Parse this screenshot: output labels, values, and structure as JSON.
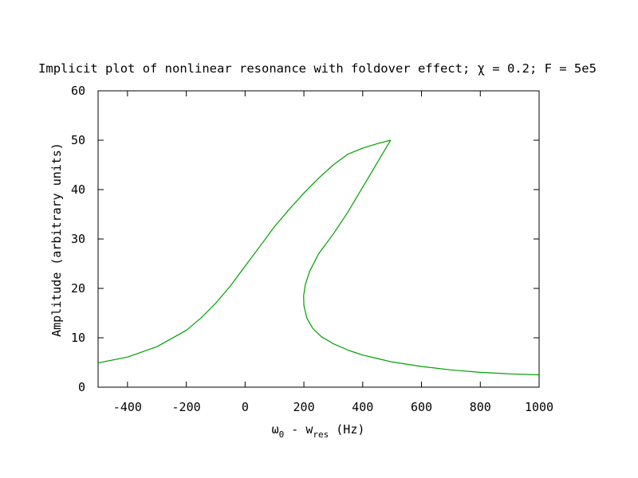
{
  "chart_data": {
    "type": "line",
    "title": "Implicit plot of nonlinear resonance with foldover effect; χ = 0.2; F = 5e5",
    "xlabel_parts": {
      "omega": "ω",
      "omega_sub": "0",
      "mid": " - w",
      "w_sub": "res",
      "unit": " (Hz)"
    },
    "ylabel": "Amplitude (arbitrary units)",
    "xlim": [
      -500,
      1000
    ],
    "ylim": [
      0,
      60
    ],
    "xticks": [
      -400,
      -200,
      0,
      200,
      400,
      600,
      800,
      1000
    ],
    "yticks": [
      0,
      10,
      20,
      30,
      40,
      50,
      60
    ],
    "grid": false,
    "line_color": "#00a000",
    "series": [
      {
        "points": [
          [
            -500,
            4.9
          ],
          [
            -400,
            6.1
          ],
          [
            -300,
            8.2
          ],
          [
            -200,
            11.5
          ],
          [
            -150,
            14.0
          ],
          [
            -100,
            17.0
          ],
          [
            -50,
            20.5
          ],
          [
            0,
            24.5
          ],
          [
            50,
            28.5
          ],
          [
            100,
            32.5
          ],
          [
            150,
            36.0
          ],
          [
            200,
            39.3
          ],
          [
            250,
            42.3
          ],
          [
            300,
            45.0
          ],
          [
            350,
            47.2
          ],
          [
            400,
            48.4
          ],
          [
            450,
            49.3
          ],
          [
            495,
            50.0
          ]
        ]
      },
      {
        "points": [
          [
            495,
            50.0
          ],
          [
            480,
            48.5
          ],
          [
            460,
            46.5
          ],
          [
            430,
            43.5
          ],
          [
            400,
            40.5
          ],
          [
            350,
            35.5
          ],
          [
            300,
            31.0
          ],
          [
            250,
            27.0
          ],
          [
            220,
            23.5
          ],
          [
            205,
            20.8
          ],
          [
            199,
            18.5
          ],
          [
            200,
            16.5
          ],
          [
            210,
            14.0
          ],
          [
            230,
            11.9
          ],
          [
            260,
            10.2
          ],
          [
            300,
            8.8
          ],
          [
            350,
            7.5
          ],
          [
            400,
            6.5
          ],
          [
            450,
            5.8
          ],
          [
            500,
            5.1
          ],
          [
            600,
            4.2
          ],
          [
            700,
            3.5
          ],
          [
            800,
            3.0
          ],
          [
            900,
            2.7
          ],
          [
            1000,
            2.5
          ]
        ]
      }
    ]
  }
}
